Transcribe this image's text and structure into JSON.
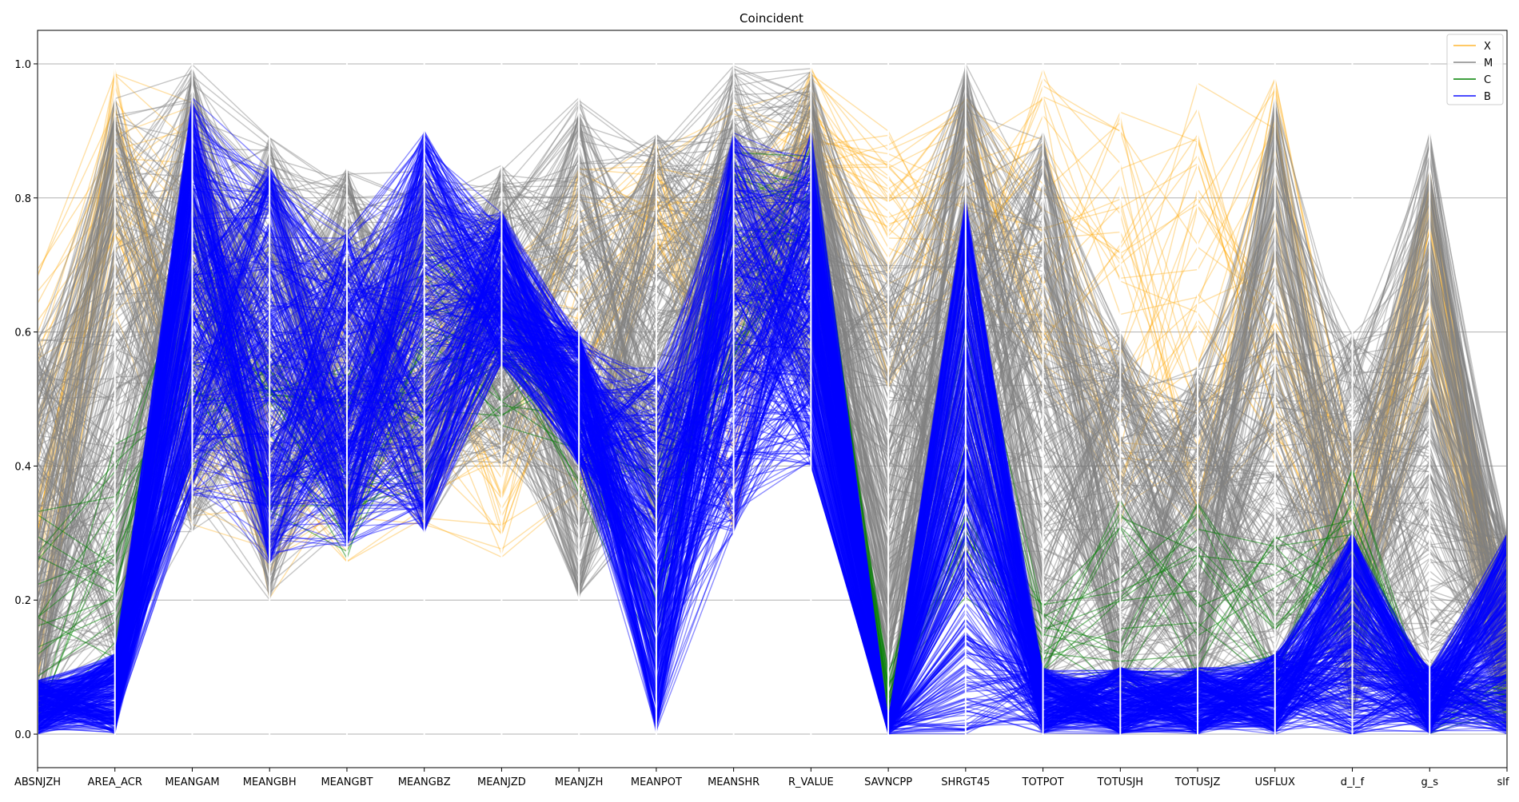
{
  "chart_data": {
    "type": "parallel_coordinates",
    "title": "Coincident",
    "axes": [
      "ABSNJZH",
      "AREA_ACR",
      "MEANGAM",
      "MEANGBH",
      "MEANGBT",
      "MEANGBZ",
      "MEANJZD",
      "MEANJZH",
      "MEANPOT",
      "MEANSHR",
      "R_VALUE",
      "SAVNCPP",
      "SHRGT45",
      "TOTPOT",
      "TOTUSJH",
      "TOTUSJZ",
      "USFLUX",
      "d_l_f",
      "g_s",
      "slf"
    ],
    "y_ticks": [
      "0.0",
      "0.2",
      "0.4",
      "0.6",
      "0.8",
      "1.0"
    ],
    "ylim": [
      -0.05,
      1.05
    ],
    "grid": true,
    "legend_position": "top-right",
    "colors": {
      "X": "#ffa500",
      "M": "#808080",
      "C": "#008000",
      "B": "#0000ff"
    },
    "series": [
      {
        "name": "X",
        "color": "#ffa500",
        "opacity": 0.35,
        "ranges": [
          [
            0.0,
            0.7
          ],
          [
            0.6,
            1.0
          ],
          [
            0.3,
            0.95
          ],
          [
            0.2,
            0.6
          ],
          [
            0.25,
            0.65
          ],
          [
            0.3,
            0.7
          ],
          [
            0.25,
            0.75
          ],
          [
            0.3,
            0.85
          ],
          [
            0.7,
            0.9
          ],
          [
            0.3,
            0.95
          ],
          [
            0.8,
            1.0
          ],
          [
            0.5,
            0.9
          ],
          [
            0.6,
            0.95
          ],
          [
            0.5,
            1.0
          ],
          [
            0.3,
            0.95
          ],
          [
            0.3,
            0.98
          ],
          [
            0.4,
            0.98
          ],
          [
            0.1,
            0.45
          ],
          [
            0.5,
            0.85
          ],
          [
            0.0,
            0.2
          ]
        ]
      },
      {
        "name": "M",
        "color": "#808080",
        "opacity": 0.45,
        "ranges": [
          [
            0.0,
            0.6
          ],
          [
            0.1,
            0.95
          ],
          [
            0.3,
            1.0
          ],
          [
            0.2,
            0.9
          ],
          [
            0.3,
            0.85
          ],
          [
            0.3,
            0.85
          ],
          [
            0.4,
            0.85
          ],
          [
            0.2,
            0.95
          ],
          [
            0.3,
            0.9
          ],
          [
            0.5,
            1.0
          ],
          [
            0.5,
            1.0
          ],
          [
            0.0,
            0.7
          ],
          [
            0.2,
            1.0
          ],
          [
            0.05,
            0.9
          ],
          [
            0.05,
            0.6
          ],
          [
            0.05,
            0.55
          ],
          [
            0.05,
            0.95
          ],
          [
            0.02,
            0.6
          ],
          [
            0.02,
            0.9
          ],
          [
            0.0,
            0.3
          ]
        ]
      },
      {
        "name": "C",
        "color": "#008000",
        "opacity": 0.5,
        "ranges": [
          [
            0.0,
            0.35
          ],
          [
            0.1,
            0.45
          ],
          [
            0.4,
            0.8
          ],
          [
            0.3,
            0.6
          ],
          [
            0.25,
            0.55
          ],
          [
            0.3,
            0.8
          ],
          [
            0.45,
            0.7
          ],
          [
            0.35,
            0.6
          ],
          [
            0.1,
            0.4
          ],
          [
            0.5,
            0.9
          ],
          [
            0.7,
            0.9
          ],
          [
            0.0,
            0.1
          ],
          [
            0.2,
            0.7
          ],
          [
            0.05,
            0.2
          ],
          [
            0.05,
            0.35
          ],
          [
            0.05,
            0.35
          ],
          [
            0.05,
            0.3
          ],
          [
            0.1,
            0.4
          ],
          [
            0.0,
            0.1
          ],
          [
            0.0,
            0.1
          ]
        ]
      },
      {
        "name": "B",
        "color": "#0000ff",
        "opacity": 0.45,
        "ranges": [
          [
            0.0,
            0.08
          ],
          [
            0.0,
            0.12
          ],
          [
            0.35,
            0.95
          ],
          [
            0.25,
            0.85
          ],
          [
            0.28,
            0.75
          ],
          [
            0.3,
            0.9
          ],
          [
            0.55,
            0.78
          ],
          [
            0.4,
            0.6
          ],
          [
            0.0,
            0.55
          ],
          [
            0.3,
            0.9
          ],
          [
            0.4,
            0.9
          ],
          [
            0.0,
            0.02
          ],
          [
            0.0,
            0.8
          ],
          [
            0.0,
            0.1
          ],
          [
            0.0,
            0.1
          ],
          [
            0.0,
            0.1
          ],
          [
            0.0,
            0.12
          ],
          [
            0.0,
            0.3
          ],
          [
            0.0,
            0.1
          ],
          [
            0.0,
            0.3
          ]
        ]
      }
    ]
  }
}
